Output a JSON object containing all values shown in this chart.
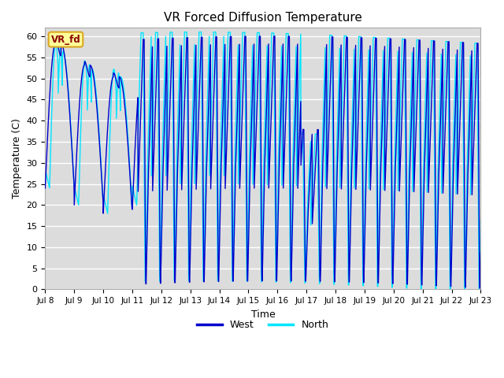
{
  "title": "VR Forced Diffusion Temperature",
  "xlabel": "Time",
  "ylabel": "Temperature (C)",
  "ylim": [
    0,
    62
  ],
  "yticks": [
    0,
    5,
    10,
    15,
    20,
    25,
    30,
    35,
    40,
    45,
    50,
    55,
    60
  ],
  "xtick_labels": [
    "Jul 8",
    "Jul 9",
    "Jul 10",
    "Jul 11",
    "Jul 12",
    "Jul 13",
    "Jul 14",
    "Jul 15",
    "Jul 16",
    "Jul 17",
    "Jul 18",
    "Jul 19",
    "Jul 20",
    "Jul 21",
    "Jul 22",
    "Jul 23"
  ],
  "west_color": "#0000CC",
  "north_color": "#00E5FF",
  "bg_color": "#DCDCDC",
  "legend_label_west": "West",
  "legend_label_north": "North",
  "annotation_text": "VR_fd",
  "annotation_color": "#8B0000",
  "annotation_bg": "#FFFF99",
  "annotation_border": "#DAA520"
}
